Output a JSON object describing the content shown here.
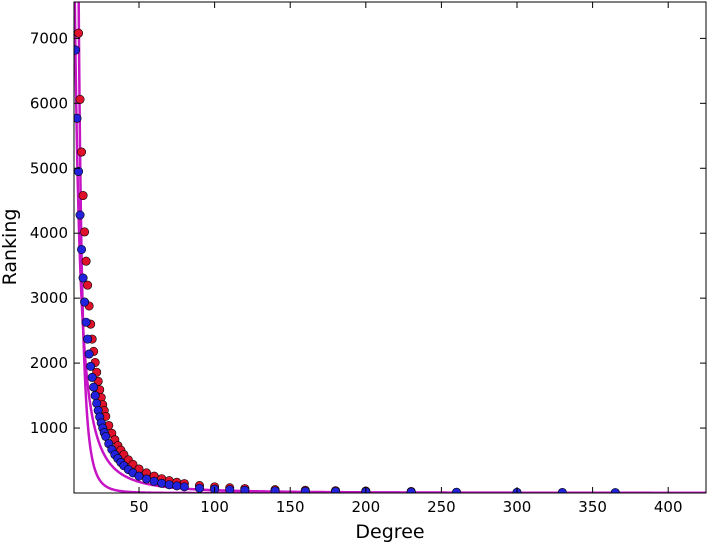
{
  "chart_data": {
    "type": "scatter",
    "title": "",
    "xlabel": "Degree",
    "ylabel": "Ranking",
    "xlim": [
      7,
      425
    ],
    "ylim": [
      0,
      7560
    ],
    "grid": false,
    "legend": "none",
    "xticks": [
      50,
      100,
      150,
      200,
      250,
      300,
      350,
      400
    ],
    "yticks": [
      1000,
      2000,
      3000,
      4000,
      5000,
      6000,
      7000
    ],
    "xtick_labels": [
      "50",
      "100",
      "150",
      "200",
      "250",
      "300",
      "350",
      "400"
    ],
    "ytick_labels": [
      "1000",
      "2000",
      "3000",
      "4000",
      "5000",
      "6000",
      "7000"
    ],
    "colors": {
      "series_red": "#e0112b",
      "series_blue": "#2222dd",
      "fit_curve": "#c513c5",
      "frame": "#000000"
    },
    "series": [
      {
        "marker": "circle",
        "color": "#e0112b",
        "x": [
          10,
          11,
          12,
          13,
          14,
          15,
          16,
          17,
          18,
          19,
          20,
          21,
          22,
          23,
          24,
          25,
          26,
          27,
          28,
          30,
          32,
          34,
          36,
          38,
          40,
          43,
          46,
          50,
          55,
          60,
          65,
          70,
          75,
          80,
          90,
          100,
          110,
          120,
          140,
          160,
          180,
          200,
          230
        ],
        "y": [
          7080,
          6060,
          5250,
          4580,
          4020,
          3570,
          3200,
          2880,
          2600,
          2370,
          2180,
          2010,
          1860,
          1720,
          1590,
          1470,
          1360,
          1270,
          1180,
          1040,
          920,
          820,
          730,
          660,
          590,
          510,
          440,
          370,
          310,
          260,
          220,
          190,
          165,
          145,
          115,
          95,
          80,
          68,
          52,
          42,
          35,
          30,
          24
        ]
      },
      {
        "marker": "circle",
        "color": "#2222dd",
        "x": [
          8,
          9,
          10,
          11,
          12,
          13,
          14,
          15,
          16,
          17,
          18,
          19,
          20,
          21,
          22,
          23,
          24,
          25,
          26,
          27,
          28,
          30,
          32,
          34,
          36,
          38,
          40,
          43,
          46,
          50,
          55,
          60,
          65,
          70,
          75,
          80,
          90,
          100,
          110,
          120,
          140,
          160,
          180,
          200,
          230,
          260,
          300,
          330,
          365
        ],
        "y": [
          6820,
          5770,
          4950,
          4280,
          3750,
          3310,
          2940,
          2630,
          2370,
          2140,
          1950,
          1780,
          1630,
          1500,
          1380,
          1270,
          1170,
          1080,
          1000,
          930,
          870,
          760,
          670,
          590,
          530,
          470,
          420,
          360,
          310,
          260,
          215,
          180,
          150,
          128,
          110,
          95,
          74,
          60,
          50,
          42,
          32,
          26,
          22,
          19,
          15,
          12,
          10,
          8,
          6
        ]
      }
    ],
    "fit_curves": [
      {
        "color": "#c513c5",
        "coef": 430000,
        "exponent": -2
      },
      {
        "color": "#c513c5",
        "coef": 125000000,
        "exponent": -4.2
      }
    ]
  }
}
